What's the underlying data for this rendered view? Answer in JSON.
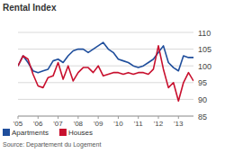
{
  "chart_data": {
    "type": "line",
    "title": "Rental Index",
    "source": "Source: Departement du Logement",
    "x": [
      2005,
      2005.25,
      2005.5,
      2005.75,
      2006,
      2006.25,
      2006.5,
      2006.75,
      2007,
      2007.25,
      2007.5,
      2007.75,
      2008,
      2008.25,
      2008.5,
      2008.75,
      2009,
      2009.25,
      2009.5,
      2009.75,
      2010,
      2010.25,
      2010.5,
      2010.75,
      2011,
      2011.25,
      2011.5,
      2011.75,
      2012,
      2012.25,
      2012.5,
      2012.75,
      2013,
      2013.25,
      2013.5,
      2013.75
    ],
    "series": [
      {
        "name": "Apartments",
        "color": "#1f4e9c",
        "values": [
          100,
          103,
          101,
          98.5,
          98,
          98.5,
          99,
          101.5,
          102,
          101,
          103,
          104.5,
          105,
          105,
          104,
          105,
          106,
          107,
          105,
          104,
          102,
          101.5,
          101,
          100,
          99.5,
          100,
          101,
          102,
          104,
          106,
          101,
          99.5,
          98.5,
          103,
          102.5,
          102.5
        ]
      },
      {
        "name": "Houses",
        "color": "#c8102e",
        "values": [
          100,
          103,
          102,
          97.5,
          94,
          93.5,
          96.5,
          97,
          101,
          96,
          100,
          95.5,
          98,
          99.5,
          99.5,
          98,
          100,
          97,
          97.5,
          98,
          98,
          97.5,
          98,
          97.5,
          98,
          98,
          97.5,
          99,
          106,
          99,
          93.5,
          95,
          89.5,
          95,
          98,
          95.5
        ]
      }
    ],
    "xlim": [
      2005,
      2013.75
    ],
    "xticks": [
      {
        "value": 2005,
        "label": "'05"
      },
      {
        "value": 2006,
        "label": "'06"
      },
      {
        "value": 2007,
        "label": "'07"
      },
      {
        "value": 2008,
        "label": "'08"
      },
      {
        "value": 2009,
        "label": "'09"
      },
      {
        "value": 2010,
        "label": "'10"
      },
      {
        "value": 2011,
        "label": "'11"
      },
      {
        "value": 2012,
        "label": "'12"
      },
      {
        "value": 2013,
        "label": "'13"
      }
    ],
    "ylim": [
      85,
      110
    ],
    "yticks": [
      85,
      90,
      95,
      100,
      105,
      110
    ],
    "grid": true,
    "legend": "bottom-left"
  }
}
